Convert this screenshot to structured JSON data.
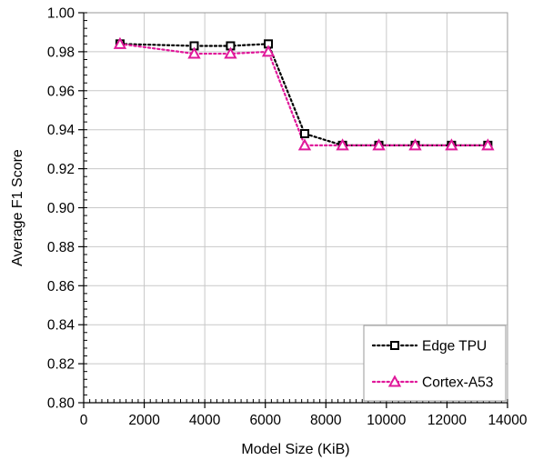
{
  "chart_data": {
    "type": "line",
    "title": "",
    "xlabel": "Model Size (KiB)",
    "ylabel": "Average F1 Score",
    "xlim": [
      0,
      14000
    ],
    "ylim": [
      0.8,
      1.0
    ],
    "x_ticks": [
      "0",
      "2000",
      "4000",
      "6000",
      "8000",
      "10000",
      "12000",
      "14000"
    ],
    "y_ticks": [
      "0.80",
      "0.82",
      "0.84",
      "0.86",
      "0.88",
      "0.90",
      "0.92",
      "0.94",
      "0.96",
      "0.98",
      "1.00"
    ],
    "grid": true,
    "legend_position": "bottom-right",
    "series": [
      {
        "name": "Edge TPU",
        "marker": "square",
        "color": "#000000",
        "line_style": "dotted",
        "x": [
          1200,
          3650,
          4850,
          6100,
          7300,
          8550,
          9750,
          10950,
          12150,
          13350
        ],
        "y": [
          0.984,
          0.983,
          0.983,
          0.984,
          0.938,
          0.932,
          0.932,
          0.932,
          0.932,
          0.932
        ]
      },
      {
        "name": "Cortex-A53",
        "marker": "triangle",
        "color": "#e0189a",
        "line_style": "dotted",
        "x": [
          1200,
          3650,
          4850,
          6100,
          7300,
          8550,
          9750,
          10950,
          12150,
          13350
        ],
        "y": [
          0.984,
          0.979,
          0.979,
          0.98,
          0.932,
          0.932,
          0.932,
          0.932,
          0.932,
          0.932
        ]
      }
    ]
  }
}
